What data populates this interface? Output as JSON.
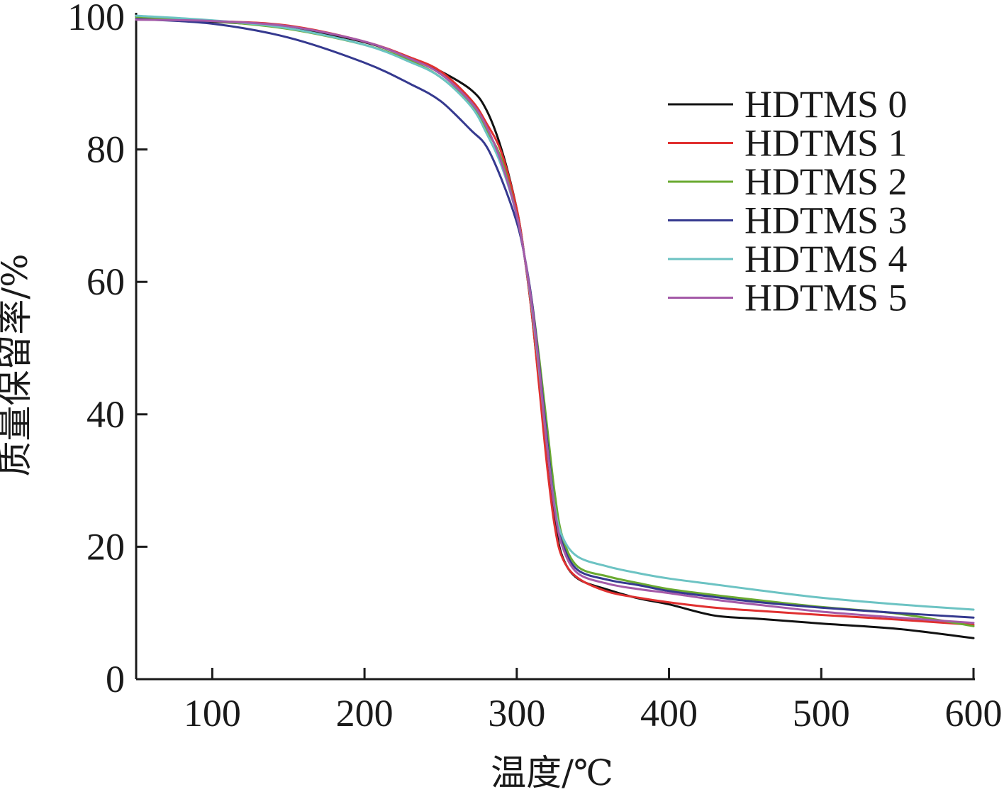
{
  "chart_data": {
    "type": "line",
    "xlabel": "温度/℃",
    "ylabel": "质量保留率/%",
    "xlim": [
      50,
      600
    ],
    "ylim": [
      0,
      100
    ],
    "xticks": [
      100,
      200,
      300,
      400,
      500,
      600
    ],
    "yticks": [
      0,
      20,
      40,
      60,
      80,
      100
    ],
    "grid": false,
    "legend_position": "top-right",
    "series": [
      {
        "name": "HDTMS 0",
        "color": "#111111",
        "x": [
          50,
          100,
          150,
          200,
          230,
          250,
          270,
          280,
          290,
          300,
          305,
          310,
          315,
          320,
          325,
          330,
          340,
          360,
          380,
          400,
          430,
          460,
          500,
          550,
          600
        ],
        "y": [
          99.7,
          99.3,
          98.4,
          96.2,
          93.8,
          91.8,
          89,
          86,
          80,
          71,
          64,
          55,
          44,
          33,
          24,
          18.5,
          15.2,
          13.5,
          12.2,
          11.3,
          9.6,
          9.1,
          8.4,
          7.6,
          6.2
        ]
      },
      {
        "name": "HDTMS 1",
        "color": "#e03030",
        "x": [
          50,
          100,
          150,
          200,
          230,
          250,
          270,
          280,
          290,
          300,
          305,
          310,
          315,
          320,
          325,
          330,
          340,
          360,
          380,
          400,
          430,
          460,
          500,
          550,
          600
        ],
        "y": [
          99.7,
          99.4,
          98.7,
          96.3,
          93.9,
          91.8,
          87.5,
          84,
          79.5,
          71,
          64,
          55,
          43.5,
          32,
          23,
          18.3,
          15.3,
          13.2,
          12.3,
          11.6,
          10.8,
          10.3,
          9.7,
          9.0,
          8.2
        ]
      },
      {
        "name": "HDTMS 2",
        "color": "#6aaa30",
        "x": [
          50,
          100,
          150,
          200,
          230,
          250,
          270,
          280,
          290,
          300,
          305,
          310,
          315,
          320,
          325,
          330,
          340,
          360,
          380,
          400,
          430,
          460,
          500,
          550,
          600
        ],
        "y": [
          99.9,
          99.4,
          98.2,
          95.8,
          93.4,
          90.9,
          86.8,
          83,
          78.5,
          70,
          64,
          57,
          48,
          38,
          28,
          21.5,
          17,
          15.5,
          14.5,
          13.6,
          12.7,
          11.9,
          10.9,
          9.9,
          8.0
        ]
      },
      {
        "name": "HDTMS 3",
        "color": "#35398f",
        "x": [
          50,
          100,
          150,
          200,
          230,
          250,
          270,
          280,
          290,
          300,
          305,
          310,
          315,
          320,
          325,
          330,
          340,
          360,
          380,
          400,
          430,
          460,
          500,
          550,
          600
        ],
        "y": [
          99.7,
          99.0,
          96.9,
          93.1,
          89.9,
          87.3,
          82.9,
          80.5,
          75.5,
          69,
          64,
          57,
          47,
          36,
          26,
          20.5,
          16.5,
          15.0,
          14.2,
          13.3,
          12.4,
          11.6,
          10.8,
          10.0,
          9.3
        ]
      },
      {
        "name": "HDTMS 4",
        "color": "#6cc3c3",
        "x": [
          50,
          100,
          150,
          200,
          230,
          250,
          270,
          280,
          290,
          300,
          305,
          310,
          315,
          320,
          325,
          330,
          340,
          360,
          380,
          400,
          430,
          460,
          500,
          550,
          600
        ],
        "y": [
          100.2,
          99.5,
          98.3,
          95.8,
          93.2,
          90.9,
          86.5,
          82.5,
          77.5,
          70,
          64,
          56,
          46,
          35,
          26,
          21.5,
          18.5,
          17.0,
          16.0,
          15.2,
          14.3,
          13.4,
          12.3,
          11.3,
          10.5
        ]
      },
      {
        "name": "HDTMS 5",
        "color": "#a45aa8",
        "x": [
          50,
          100,
          150,
          200,
          230,
          250,
          270,
          280,
          290,
          300,
          305,
          310,
          315,
          320,
          325,
          330,
          340,
          360,
          380,
          400,
          430,
          460,
          500,
          550,
          600
        ],
        "y": [
          99.6,
          99.4,
          98.6,
          96.3,
          93.7,
          91.4,
          87.1,
          83.5,
          78,
          70,
          64,
          56.5,
          46.5,
          35,
          25.5,
          20.0,
          16.0,
          14.4,
          13.6,
          13.0,
          12.0,
          11.2,
          10.2,
          9.3,
          8.5
        ]
      }
    ]
  }
}
